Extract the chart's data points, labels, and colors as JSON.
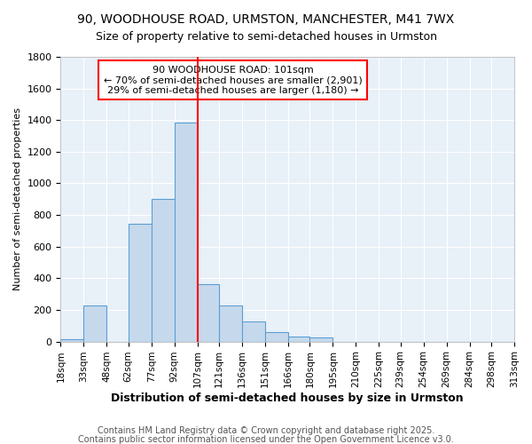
{
  "title_line1": "90, WOODHOUSE ROAD, URMSTON, MANCHESTER, M41 7WX",
  "title_line2": "Size of property relative to semi-detached houses in Urmston",
  "xlabel": "Distribution of semi-detached houses by size in Urmston",
  "ylabel": "Number of semi-detached properties",
  "annotation_line1": "90 WOODHOUSE ROAD: 101sqm",
  "annotation_line2": "← 70% of semi-detached houses are smaller (2,901)",
  "annotation_line3": "29% of semi-detached houses are larger (1,180) →",
  "footer_line1": "Contains HM Land Registry data © Crown copyright and database right 2025.",
  "footer_line2": "Contains public sector information licensed under the Open Government Licence v3.0.",
  "bar_left_edges": [
    18,
    33,
    48,
    62,
    77,
    92,
    107,
    121,
    136,
    151,
    166,
    180,
    195,
    210,
    225,
    239,
    254,
    269,
    284,
    298
  ],
  "bar_right_edges": [
    33,
    48,
    62,
    77,
    92,
    107,
    121,
    136,
    151,
    166,
    180,
    195,
    210,
    225,
    239,
    254,
    269,
    284,
    298,
    313
  ],
  "bar_heights": [
    15,
    230,
    0,
    745,
    900,
    1385,
    360,
    230,
    125,
    60,
    30,
    28,
    0,
    0,
    0,
    0,
    0,
    0,
    0,
    0
  ],
  "bar_color": "#c6d9ec",
  "bar_edge_color": "#5a9fd4",
  "vline_x": 107,
  "vline_color": "red",
  "ylim": [
    0,
    1800
  ],
  "yticks": [
    0,
    200,
    400,
    600,
    800,
    1000,
    1200,
    1400,
    1600,
    1800
  ],
  "xtick_labels": [
    "18sqm",
    "33sqm",
    "48sqm",
    "62sqm",
    "77sqm",
    "92sqm",
    "107sqm",
    "121sqm",
    "136sqm",
    "151sqm",
    "166sqm",
    "180sqm",
    "195sqm",
    "210sqm",
    "225sqm",
    "239sqm",
    "254sqm",
    "269sqm",
    "284sqm",
    "298sqm",
    "313sqm"
  ],
  "background_color": "#e8f0f8",
  "grid_color": "#ffffff",
  "title_fontsize": 10,
  "subtitle_fontsize": 9,
  "ylabel_fontsize": 8,
  "xlabel_fontsize": 9,
  "footer_fontsize": 7
}
